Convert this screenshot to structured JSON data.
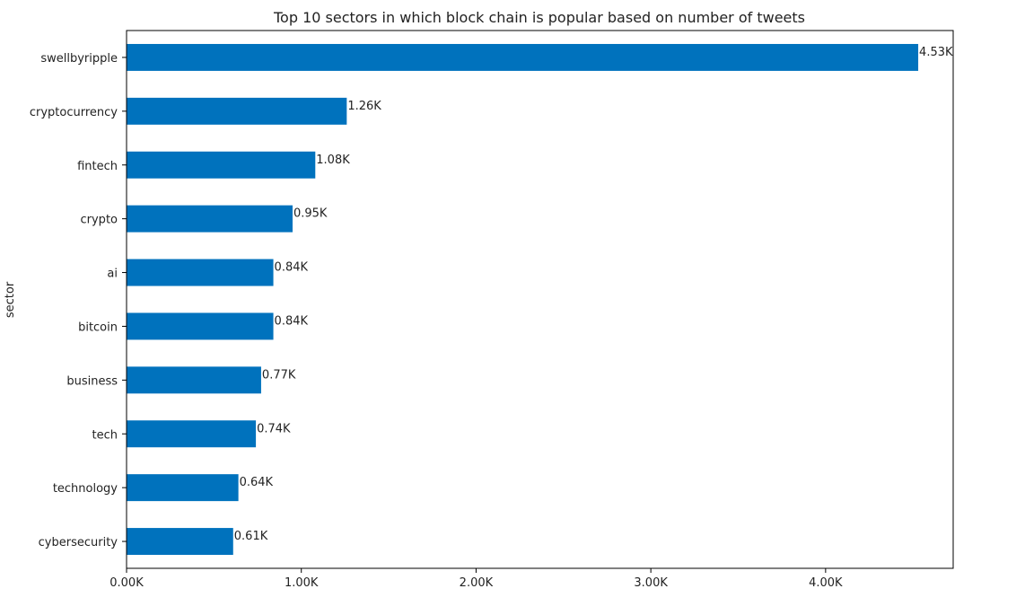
{
  "chart_data": {
    "type": "bar",
    "orientation": "horizontal",
    "title": "Top 10 sectors in which block chain is popular based on number of tweets",
    "xlabel": "",
    "ylabel": "sector",
    "categories": [
      "swellbyripple",
      "cryptocurrency",
      "fintech",
      "crypto",
      "ai",
      "bitcoin",
      "business",
      "tech",
      "technology",
      "cybersecurity"
    ],
    "values": [
      4530,
      1260,
      1080,
      950,
      840,
      840,
      770,
      740,
      640,
      610
    ],
    "data_labels": [
      "4.53K",
      "1.26K",
      "1.08K",
      "0.95K",
      "0.84K",
      "0.84K",
      "0.77K",
      "0.74K",
      "0.64K",
      "0.61K"
    ],
    "xlim": [
      0,
      4730
    ],
    "x_ticks": [
      0,
      1000,
      2000,
      3000,
      4000
    ],
    "x_tick_labels": [
      "0.00K",
      "1.00K",
      "2.00K",
      "3.00K",
      "4.00K"
    ],
    "bar_color": "#0072bd",
    "grid": false
  }
}
